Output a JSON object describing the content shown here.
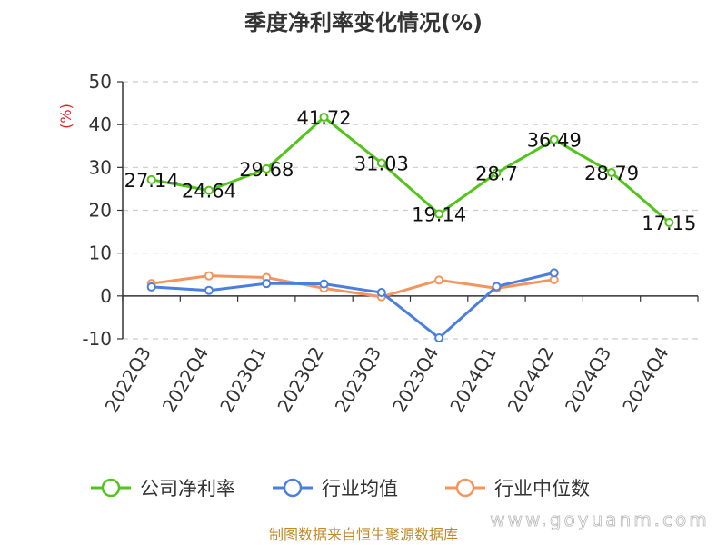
{
  "chart_data": {
    "type": "line",
    "title": "季度净利率变化情况(%)",
    "ylabel": "(%)",
    "ylim": [
      -10,
      50
    ],
    "yticks": [
      -10,
      0,
      10,
      20,
      30,
      40,
      50
    ],
    "grid": true,
    "legend_position": "bottom",
    "categories": [
      "2022Q3",
      "2022Q4",
      "2023Q1",
      "2023Q2",
      "2023Q3",
      "2023Q4",
      "2024Q1",
      "2024Q2",
      "2024Q3",
      "2024Q4"
    ],
    "series": [
      {
        "name": "公司净利率",
        "color": "#52c41a",
        "values": [
          27.14,
          24.64,
          29.68,
          41.72,
          31.03,
          19.14,
          28.7,
          36.49,
          28.79,
          17.15
        ],
        "show_labels": true
      },
      {
        "name": "行业均值",
        "color": "#4a7fe0",
        "values": [
          2.1,
          1.3,
          2.9,
          2.8,
          0.8,
          -9.8,
          2.2,
          5.4,
          null,
          null
        ],
        "show_labels": false
      },
      {
        "name": "行业中位数",
        "color": "#f5945c",
        "values": [
          2.9,
          4.7,
          4.3,
          1.8,
          -0.2,
          3.7,
          1.8,
          3.8,
          null,
          null
        ],
        "show_labels": false
      }
    ]
  },
  "footer": {
    "source": "制图数据来自恒生聚源数据库",
    "watermark": "www.goyuanm.com"
  }
}
